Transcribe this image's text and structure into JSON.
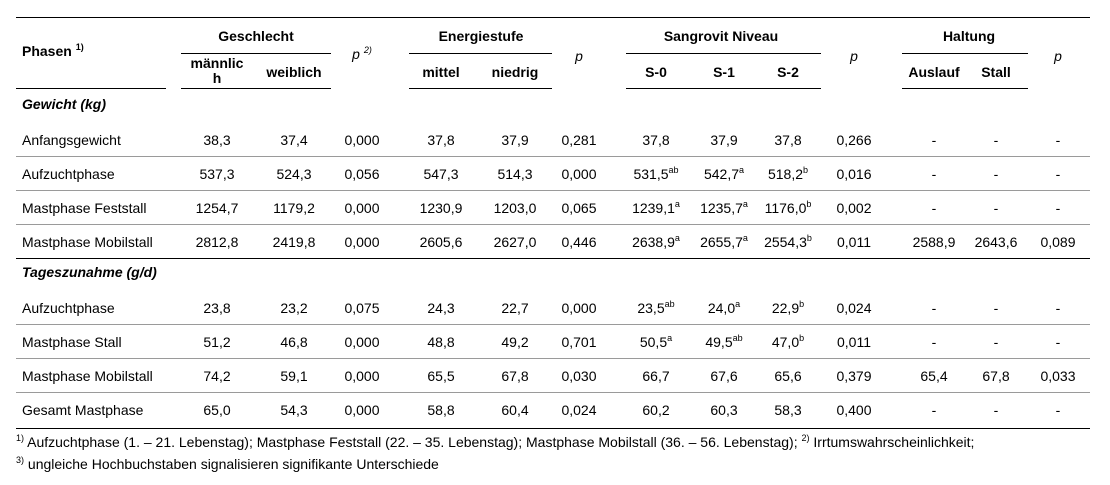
{
  "header": {
    "phasen": "Phasen",
    "phasen_sup": "1)",
    "p": "p",
    "p_sup": "2)",
    "groups": {
      "geschlecht": "Geschlecht",
      "energiestufe": "Energiestufe",
      "sangrovit": "Sangrovit Niveau",
      "haltung": "Haltung"
    },
    "sub": {
      "maennlich_1": "männlic",
      "maennlich_2": "h",
      "weiblich": "weiblich",
      "mittel": "mittel",
      "niedrig": "niedrig",
      "s0": "S-0",
      "s1": "S-1",
      "s2": "S-2",
      "auslauf": "Auslauf",
      "stall": "Stall"
    }
  },
  "sections": [
    {
      "title": "Gewicht (kg)",
      "rows": [
        {
          "label": "Anfangsgewicht",
          "cells": [
            [
              "38,3",
              ""
            ],
            [
              "37,4",
              ""
            ],
            [
              "0,000",
              ""
            ],
            [
              "37,8",
              ""
            ],
            [
              "37,9",
              ""
            ],
            [
              "0,281",
              ""
            ],
            [
              "37,8",
              ""
            ],
            [
              "37,9",
              ""
            ],
            [
              "37,8",
              ""
            ],
            [
              "0,266",
              ""
            ],
            [
              "-",
              ""
            ],
            [
              "-",
              ""
            ],
            [
              "-",
              ""
            ]
          ]
        },
        {
          "label": "Aufzuchtphase",
          "cells": [
            [
              "537,3",
              ""
            ],
            [
              "524,3",
              ""
            ],
            [
              "0,056",
              ""
            ],
            [
              "547,3",
              ""
            ],
            [
              "514,3",
              ""
            ],
            [
              "0,000",
              ""
            ],
            [
              "531,5",
              "ab"
            ],
            [
              "542,7",
              "a"
            ],
            [
              "518,2",
              "b"
            ],
            [
              "0,016",
              ""
            ],
            [
              "-",
              ""
            ],
            [
              "-",
              ""
            ],
            [
              "-",
              ""
            ]
          ]
        },
        {
          "label": "Mastphase Feststall",
          "cells": [
            [
              "1254,7",
              ""
            ],
            [
              "1179,2",
              ""
            ],
            [
              "0,000",
              ""
            ],
            [
              "1230,9",
              ""
            ],
            [
              "1203,0",
              ""
            ],
            [
              "0,065",
              ""
            ],
            [
              "1239,1",
              "a"
            ],
            [
              "1235,7",
              "a"
            ],
            [
              "1176,0",
              "b"
            ],
            [
              "0,002",
              ""
            ],
            [
              "-",
              ""
            ],
            [
              "-",
              ""
            ],
            [
              "-",
              ""
            ]
          ]
        },
        {
          "label": "Mastphase Mobilstall",
          "cells": [
            [
              "2812,8",
              ""
            ],
            [
              "2419,8",
              ""
            ],
            [
              "0,000",
              ""
            ],
            [
              "2605,6",
              ""
            ],
            [
              "2627,0",
              ""
            ],
            [
              "0,446",
              ""
            ],
            [
              "2638,9",
              "a"
            ],
            [
              "2655,7",
              "a"
            ],
            [
              "2554,3",
              "b"
            ],
            [
              "0,011",
              ""
            ],
            [
              "2588,9",
              ""
            ],
            [
              "2643,6",
              ""
            ],
            [
              "0,089",
              ""
            ]
          ]
        }
      ]
    },
    {
      "title": "Tageszunahme (g/d)",
      "rows": [
        {
          "label": "Aufzuchtphase",
          "cells": [
            [
              "23,8",
              ""
            ],
            [
              "23,2",
              ""
            ],
            [
              "0,075",
              ""
            ],
            [
              "24,3",
              ""
            ],
            [
              "22,7",
              ""
            ],
            [
              "0,000",
              ""
            ],
            [
              "23,5",
              "ab"
            ],
            [
              "24,0",
              "a"
            ],
            [
              "22,9",
              "b"
            ],
            [
              "0,024",
              ""
            ],
            [
              "-",
              ""
            ],
            [
              "-",
              ""
            ],
            [
              "-",
              ""
            ]
          ]
        },
        {
          "label": "Mastphase Stall",
          "cells": [
            [
              "51,2",
              ""
            ],
            [
              "46,8",
              ""
            ],
            [
              "0,000",
              ""
            ],
            [
              "48,8",
              ""
            ],
            [
              "49,2",
              ""
            ],
            [
              "0,701",
              ""
            ],
            [
              "50,5",
              "a"
            ],
            [
              "49,5",
              "ab"
            ],
            [
              "47,0",
              "b"
            ],
            [
              "0,011",
              ""
            ],
            [
              "-",
              ""
            ],
            [
              "-",
              ""
            ],
            [
              "-",
              ""
            ]
          ]
        },
        {
          "label": "Mastphase Mobilstall",
          "cells": [
            [
              "74,2",
              ""
            ],
            [
              "59,1",
              ""
            ],
            [
              "0,000",
              ""
            ],
            [
              "65,5",
              ""
            ],
            [
              "67,8",
              ""
            ],
            [
              "0,030",
              ""
            ],
            [
              "66,7",
              ""
            ],
            [
              "67,6",
              ""
            ],
            [
              "65,6",
              ""
            ],
            [
              "0,379",
              ""
            ],
            [
              "65,4",
              ""
            ],
            [
              "67,8",
              ""
            ],
            [
              "0,033",
              ""
            ]
          ]
        },
        {
          "label": "Gesamt Mastphase",
          "cells": [
            [
              "65,0",
              ""
            ],
            [
              "54,3",
              ""
            ],
            [
              "0,000",
              ""
            ],
            [
              "58,8",
              ""
            ],
            [
              "60,4",
              ""
            ],
            [
              "0,024",
              ""
            ],
            [
              "60,2",
              ""
            ],
            [
              "60,3",
              ""
            ],
            [
              "58,3",
              ""
            ],
            [
              "0,400",
              ""
            ],
            [
              "-",
              ""
            ],
            [
              "-",
              ""
            ],
            [
              "-",
              ""
            ]
          ]
        }
      ]
    }
  ],
  "footnotes": {
    "line1_sup1": "1)",
    "line1_text1": " Aufzuchtphase (1. – 21. Lebenstag); Mastphase Feststall (22. – 35. Lebenstag); Mastphase Mobilstall (36. – 56. Lebenstag); ",
    "line1_sup2": "2)",
    "line1_text2": " Irrtumswahrscheinlichkeit;",
    "line2_sup": "3)",
    "line2_text": " ungleiche Hochbuchstaben signalisieren signifikante Unterschiede"
  }
}
